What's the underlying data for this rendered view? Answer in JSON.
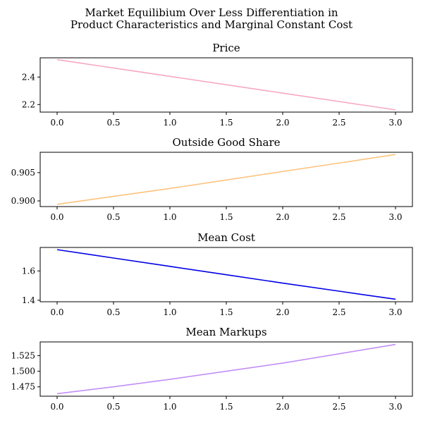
{
  "figure": {
    "title_line1": "Market Equilibium Over Less Differentiation in",
    "title_line2": "Product Characteristics and Marginal Constant Cost"
  },
  "chart_data": [
    {
      "type": "line",
      "title": "Price",
      "x": [
        0.0,
        0.5,
        1.0,
        1.5,
        2.0,
        2.5,
        3.0
      ],
      "values": [
        2.527,
        2.466,
        2.405,
        2.344,
        2.283,
        2.222,
        2.161
      ],
      "color": "#f7a8c1",
      "xlim": [
        -0.15,
        3.15
      ],
      "ylim": [
        2.145,
        2.54
      ],
      "xticks": [
        0.0,
        0.5,
        1.0,
        1.5,
        2.0,
        2.5,
        3.0
      ],
      "xtick_labels": [
        "0.0",
        "0.5",
        "1.0",
        "1.5",
        "2.0",
        "2.5",
        "3.0"
      ],
      "yticks": [
        2.2,
        2.4
      ],
      "ytick_labels": [
        "2.2",
        "2.4"
      ],
      "grid": false
    },
    {
      "type": "line",
      "title": "Outside Good Share",
      "x": [
        0.0,
        0.5,
        1.0,
        1.5,
        2.0,
        2.5,
        3.0
      ],
      "values": [
        0.8994,
        0.9008,
        0.9022,
        0.9037,
        0.9052,
        0.9067,
        0.9082
      ],
      "color": "#fcc27e",
      "xlim": [
        -0.15,
        3.15
      ],
      "ylim": [
        0.899,
        0.9086
      ],
      "xticks": [
        0.0,
        0.5,
        1.0,
        1.5,
        2.0,
        2.5,
        3.0
      ],
      "xtick_labels": [
        "0.0",
        "0.5",
        "1.0",
        "1.5",
        "2.0",
        "2.5",
        "3.0"
      ],
      "yticks": [
        0.9,
        0.905
      ],
      "ytick_labels": [
        "0.900",
        "0.905"
      ],
      "grid": false
    },
    {
      "type": "line",
      "title": "Mean Cost",
      "x": [
        0.0,
        0.5,
        1.0,
        1.5,
        2.0,
        2.5,
        3.0
      ],
      "values": [
        1.745,
        1.688,
        1.631,
        1.574,
        1.517,
        1.462,
        1.407
      ],
      "color": "#0000e6",
      "xlim": [
        -0.15,
        3.15
      ],
      "ylim": [
        1.39,
        1.76
      ],
      "xticks": [
        0.0,
        0.5,
        1.0,
        1.5,
        2.0,
        2.5,
        3.0
      ],
      "xtick_labels": [
        "0.0",
        "0.5",
        "1.0",
        "1.5",
        "2.0",
        "2.5",
        "3.0"
      ],
      "yticks": [
        1.4,
        1.6
      ],
      "ytick_labels": [
        "1.4",
        "1.6"
      ],
      "grid": false
    },
    {
      "type": "line",
      "title": "Mean Markups",
      "x": [
        0.0,
        0.5,
        1.0,
        1.5,
        2.0,
        2.5,
        3.0
      ],
      "values": [
        1.464,
        1.475,
        1.487,
        1.5,
        1.513,
        1.528,
        1.543
      ],
      "color": "#c28ff7",
      "xlim": [
        -0.15,
        3.15
      ],
      "ylim": [
        1.46,
        1.547
      ],
      "xticks": [
        0.0,
        0.5,
        1.0,
        1.5,
        2.0,
        2.5,
        3.0
      ],
      "xtick_labels": [
        "0.0",
        "0.5",
        "1.0",
        "1.5",
        "2.0",
        "2.5",
        "3.0"
      ],
      "yticks": [
        1.475,
        1.5,
        1.525
      ],
      "ytick_labels": [
        "1.475",
        "1.500",
        "1.525"
      ],
      "grid": false
    }
  ]
}
